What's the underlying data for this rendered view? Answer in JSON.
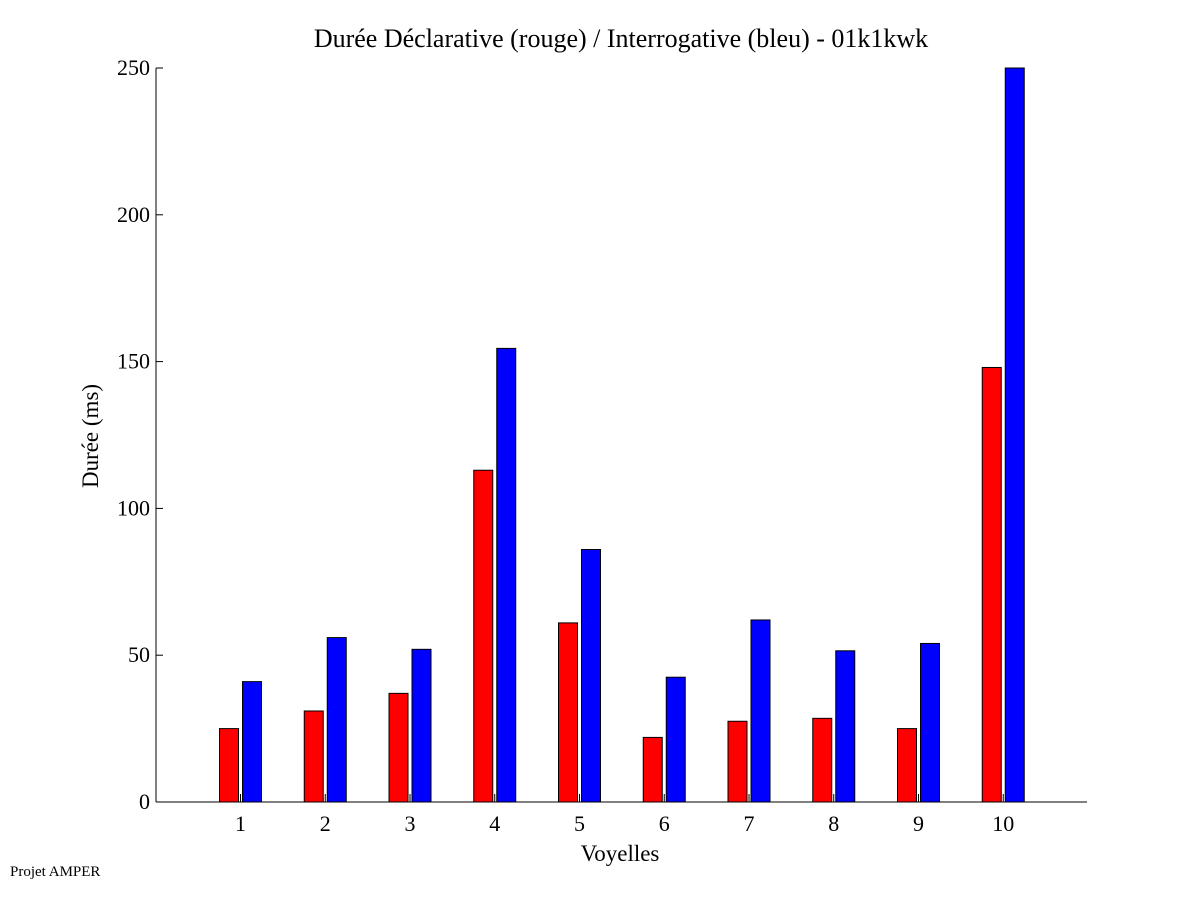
{
  "chart_data": {
    "type": "bar",
    "title": "Durée Déclarative (rouge) / Interrogative (bleu) - 01k1kwk",
    "xlabel": "Voyelles",
    "ylabel": "Durée (ms)",
    "categories": [
      "1",
      "2",
      "3",
      "4",
      "5",
      "6",
      "7",
      "8",
      "9",
      "10"
    ],
    "ylim": [
      0,
      250
    ],
    "yticks": [
      0,
      50,
      100,
      150,
      200,
      250
    ],
    "grid": false,
    "series": [
      {
        "color": "#ff0000",
        "values": [
          25,
          31,
          37,
          113,
          61,
          22,
          27.5,
          28.5,
          25,
          148
        ]
      },
      {
        "color": "#0000ff",
        "values": [
          41,
          56,
          52,
          154.5,
          86,
          42.5,
          62,
          51.5,
          54,
          250
        ]
      }
    ]
  },
  "footer": {
    "text": "Projet AMPER"
  }
}
